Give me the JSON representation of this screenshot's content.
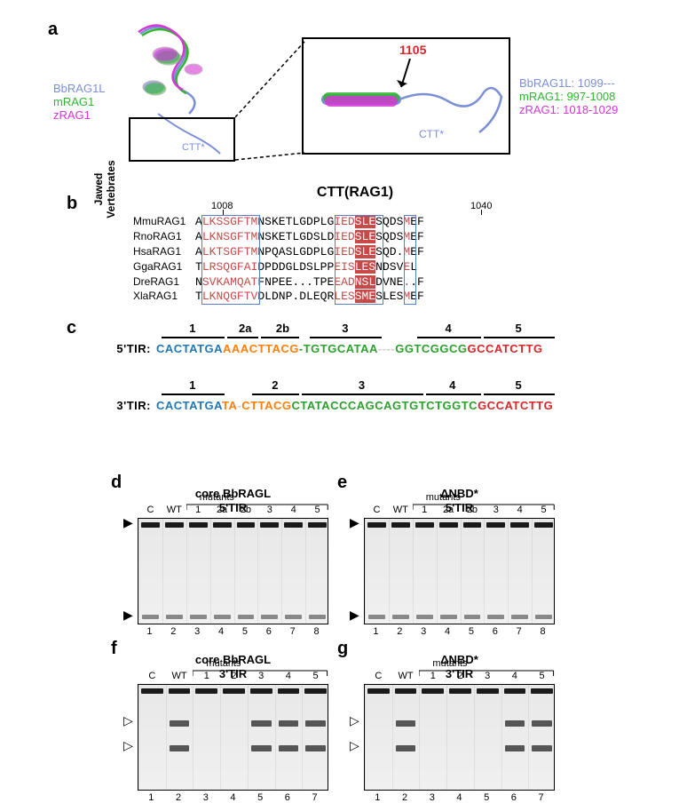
{
  "panelA": {
    "label": "a",
    "legend": [
      {
        "text": "BbRAG1L",
        "color": "#7b8fd6"
      },
      {
        "text": "mRAG1",
        "color": "#2fb52f"
      },
      {
        "text": "zRAG1",
        "color": "#d536d5"
      }
    ],
    "ctt_label": "CTT*",
    "zoom_callout": "1105",
    "right_labels": [
      {
        "text": "BbRAG1L:  1099---",
        "color": "#7b8fd6"
      },
      {
        "text": "mRAG1:  997-1008",
        "color": "#2fb52f"
      },
      {
        "text": "zRAG1:  1018-1029",
        "color": "#d536d5"
      }
    ],
    "struct_colors": {
      "bb": "#7b8fd6",
      "m": "#2fb52f",
      "z": "#d536d5",
      "outline": "#cccccc"
    }
  },
  "panelB": {
    "label": "b",
    "title": "CTT(RAG1)",
    "vert_label": "Jawed\nVertebrates",
    "pos_left": "1008",
    "pos_right": "1040",
    "rows": [
      {
        "name": "MmuRAG1",
        "seq": "ALKSSGFTMNSKETLGDPLGIEDSLESQDSMEF"
      },
      {
        "name": "RnoRAG1",
        "seq": "ALKNSGFTMNSKETLGDSLDIEDSLESQDSMEF"
      },
      {
        "name": "HsaRAG1",
        "seq": "ALKTSGFTMNPQASLGDPLGIEDSLESQD.MEF"
      },
      {
        "name": "GgaRAG1",
        "seq": "TLRSQGFAIDPDDGLDSLPPEISLESNDSVEL"
      },
      {
        "name": "DreRAG1",
        "seq": "NSVKAMQATFNPEE...TPEEADNSLDVNE..F"
      },
      {
        "name": "XlaRAG1",
        "seq": "TLKNQGFTVDLDNP.DLEQRLESSMESLESMEF"
      }
    ],
    "colors": {
      "highlight": "#c94848",
      "box": "#5b7fc7",
      "inverse_bg": "#c94848",
      "inverse_fg": "#ffffff"
    }
  },
  "panelC": {
    "label": "c",
    "tirs": [
      {
        "label": "5'TIR:",
        "regions": [
          {
            "n": "1",
            "seq": "CACTATGA",
            "color": "#1f77b4"
          },
          {
            "n": "2a",
            "seq": "AAAC",
            "color": "#ff7f0e"
          },
          {
            "n": "2b",
            "seq": "TTACG",
            "color": "#ff7f0e"
          },
          {
            "n": "-",
            "seq": "-",
            "color": "#2ca02c"
          },
          {
            "n": "3",
            "seq": "TGTGCATAA",
            "color": "#2ca02c"
          },
          {
            "n": "gap",
            "seq": "----",
            "color": "#cccccc"
          },
          {
            "n": "4",
            "seq": "GGTCGGCG",
            "color": "#2ca02c"
          },
          {
            "n": "5",
            "seq": "GCCATCTTG",
            "color": "#d62728"
          }
        ]
      },
      {
        "label": "3'TIR:",
        "regions": [
          {
            "n": "1",
            "seq": "CACTATGA",
            "color": "#1f77b4"
          },
          {
            "n": "-",
            "seq": "TA",
            "color": "#ff7f0e"
          },
          {
            "n": "gap",
            "seq": "-",
            "color": "#cccccc"
          },
          {
            "n": "2",
            "seq": "CTTACG",
            "color": "#ff7f0e"
          },
          {
            "n": "3",
            "seq": "CTATACCCAGCAGTG",
            "color": "#2ca02c"
          },
          {
            "n": "4",
            "seq": "TCTGGTC",
            "color": "#2ca02c"
          },
          {
            "n": "5",
            "seq": "GCCATCTTG",
            "color": "#d62728"
          }
        ]
      }
    ]
  },
  "gels": {
    "mutants_label": "mutants",
    "panels": [
      {
        "id": "d",
        "title1": "core BbRAGL",
        "title2": "5'TIR",
        "lanes_top": [
          "C",
          "WT",
          "1",
          "2a",
          "2b",
          "3",
          "4",
          "5"
        ],
        "lanes_bottom": [
          "1",
          "2",
          "3",
          "4",
          "5",
          "6",
          "7",
          "8"
        ],
        "marker": "filled"
      },
      {
        "id": "e",
        "title1": "ΔNBD*",
        "title2": "5'TIR",
        "lanes_top": [
          "C",
          "WT",
          "1",
          "2a",
          "2b",
          "3",
          "4",
          "5"
        ],
        "lanes_bottom": [
          "1",
          "2",
          "3",
          "4",
          "5",
          "6",
          "7",
          "8"
        ],
        "marker": "filled"
      },
      {
        "id": "f",
        "title1": "core BbRAGL",
        "title2": "3'TIR",
        "lanes_top": [
          "C",
          "WT",
          "1",
          "2",
          "3",
          "4",
          "5"
        ],
        "lanes_bottom": [
          "1",
          "2",
          "3",
          "4",
          "5",
          "6",
          "7"
        ],
        "marker": "open"
      },
      {
        "id": "g",
        "title1": "ΔNBD*",
        "title2": "3'TIR",
        "lanes_top": [
          "C",
          "WT",
          "1",
          "2",
          "3",
          "4",
          "5"
        ],
        "lanes_bottom": [
          "1",
          "2",
          "3",
          "4",
          "5",
          "6",
          "7"
        ],
        "marker": "open"
      }
    ],
    "band_color": "#1a1a1a"
  }
}
